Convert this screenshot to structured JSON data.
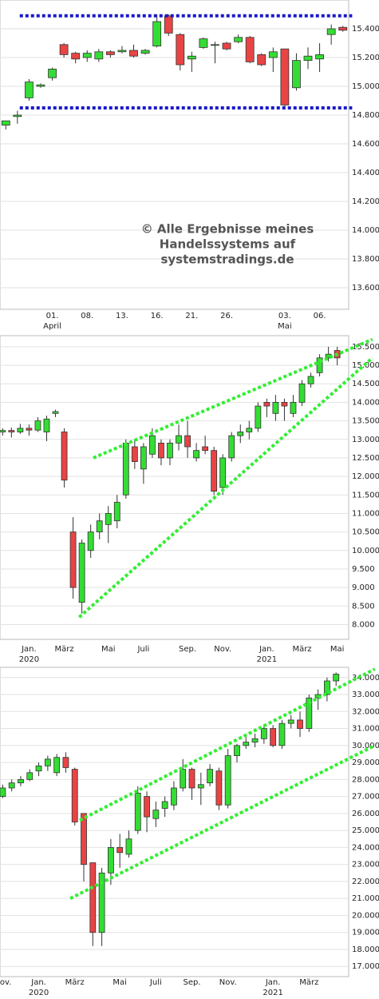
{
  "chart_data": [
    {
      "type": "candlestick",
      "categories": [
        null,
        null,
        null,
        null,
        "01.",
        null,
        null,
        "08.",
        null,
        null,
        "13.",
        null,
        null,
        "16.",
        null,
        null,
        "21.",
        null,
        null,
        "26.",
        null,
        null,
        null,
        null,
        "03.",
        null,
        null,
        "06.",
        null,
        null
      ],
      "x_sublabels": [
        null,
        null,
        null,
        null,
        "April",
        null,
        null,
        null,
        null,
        null,
        null,
        null,
        null,
        null,
        null,
        null,
        null,
        null,
        null,
        null,
        null,
        null,
        null,
        null,
        "Mai",
        null,
        null,
        null,
        null,
        null
      ],
      "open": [
        14730,
        14790,
        14920,
        15000,
        15060,
        15290,
        15230,
        15200,
        15190,
        15240,
        15240,
        15250,
        15230,
        15280,
        15490,
        15360,
        15190,
        15270,
        15290,
        15300,
        15310,
        15340,
        15220,
        15200,
        15260,
        14990,
        15180,
        15190,
        15360,
        15410
      ],
      "high": [
        14760,
        14830,
        15050,
        15020,
        15130,
        15300,
        15240,
        15250,
        15260,
        15250,
        15280,
        15290,
        15260,
        15500,
        15500,
        15370,
        15240,
        15340,
        15310,
        15310,
        15360,
        15350,
        15230,
        15270,
        15260,
        15230,
        15270,
        15300,
        15430,
        15420
      ],
      "low": [
        14700,
        14740,
        14900,
        14990,
        15040,
        15200,
        15160,
        15170,
        15170,
        15200,
        15230,
        15200,
        15220,
        15270,
        15350,
        15110,
        15100,
        15260,
        15160,
        15250,
        15300,
        15160,
        15140,
        15100,
        14850,
        14970,
        15120,
        15100,
        15290,
        15380
      ],
      "close": [
        14760,
        14800,
        15030,
        15010,
        15120,
        15220,
        15190,
        15230,
        15240,
        15220,
        15250,
        15210,
        15250,
        15450,
        15370,
        15150,
        15210,
        15330,
        15290,
        15260,
        15340,
        15170,
        15150,
        15240,
        14870,
        15180,
        15210,
        15220,
        15400,
        15390
      ],
      "up_color": "#33dd33",
      "down_color": "#e84444",
      "xlim": [
        -0.5,
        29.5
      ],
      "ylim": [
        13450,
        15600
      ],
      "yticks": [
        {
          "value": 13600,
          "label": "13.600"
        },
        {
          "value": 13800,
          "label": "13.800"
        },
        {
          "value": 14000,
          "label": "14.000"
        },
        {
          "value": 14200,
          "label": "14.200"
        },
        {
          "value": 14400,
          "label": "14.400"
        },
        {
          "value": 14600,
          "label": "14.600"
        },
        {
          "value": 14800,
          "label": "14.800"
        },
        {
          "value": 15000,
          "label": "15.000"
        },
        {
          "value": 15200,
          "label": "15.200"
        },
        {
          "value": 15400,
          "label": "15.400"
        }
      ],
      "lines": [
        {
          "color": "#1a1acc",
          "x": [
            1.2,
            29.8
          ],
          "y": [
            15490,
            15490
          ]
        },
        {
          "color": "#1a1acc",
          "x": [
            1.2,
            29.8
          ],
          "y": [
            14850,
            14850
          ]
        }
      ],
      "annotation": [
        "© Alle Ergebnisse meines",
        "Handelssystems auf",
        "systemstradings.de"
      ]
    },
    {
      "type": "candlestick",
      "categories": [
        null,
        null,
        null,
        "Jan.",
        null,
        null,
        null,
        "März",
        null,
        null,
        null,
        null,
        "Mai",
        null,
        null,
        null,
        "Juli",
        null,
        null,
        null,
        null,
        "Sep.",
        null,
        null,
        null,
        "Nov.",
        null,
        null,
        null,
        null,
        "Jan.",
        null,
        null,
        null,
        "März",
        null,
        null,
        null,
        "Mai"
      ],
      "x_sublabels": [
        null,
        null,
        null,
        "2020",
        null,
        null,
        null,
        null,
        null,
        null,
        null,
        null,
        null,
        null,
        null,
        null,
        null,
        null,
        null,
        null,
        null,
        null,
        null,
        null,
        null,
        null,
        null,
        null,
        null,
        null,
        "2021",
        null,
        null,
        null,
        null,
        null,
        null,
        null,
        null
      ],
      "open": [
        13200,
        13240,
        13200,
        13300,
        13250,
        13200,
        13700,
        13200,
        10500,
        8600,
        10000,
        10500,
        10700,
        10800,
        11500,
        12800,
        12200,
        12600,
        12900,
        12500,
        12900,
        13100,
        12500,
        12800,
        12700,
        11700,
        12500,
        13100,
        13200,
        13300,
        14000,
        13700,
        14000,
        13700,
        14000,
        14500,
        14800,
        15200,
        15400
      ],
      "high": [
        13300,
        13320,
        13420,
        13400,
        13600,
        13640,
        13800,
        13300,
        10900,
        10300,
        10700,
        11000,
        11200,
        11500,
        13000,
        13000,
        12900,
        13300,
        13000,
        13000,
        13400,
        13500,
        12900,
        13100,
        12800,
        12600,
        13200,
        13400,
        13500,
        14000,
        14100,
        14200,
        14100,
        14200,
        14600,
        14800,
        15300,
        15500,
        15500
      ],
      "low": [
        13100,
        13050,
        13150,
        13100,
        13200,
        12950,
        13600,
        11700,
        8700,
        8300,
        9800,
        10300,
        10200,
        10600,
        11400,
        12200,
        11800,
        12500,
        12300,
        12300,
        12700,
        12500,
        12400,
        12600,
        11500,
        11500,
        12400,
        12900,
        13000,
        13200,
        13600,
        13500,
        13500,
        13600,
        13900,
        14400,
        14700,
        15100,
        15000
      ],
      "close": [
        13240,
        13200,
        13300,
        13250,
        13500,
        13550,
        13750,
        11900,
        9000,
        10200,
        10500,
        10800,
        11000,
        11300,
        12900,
        12400,
        12800,
        13100,
        12500,
        12900,
        13100,
        12800,
        12700,
        12700,
        11600,
        12500,
        13100,
        13200,
        13300,
        13900,
        13900,
        14000,
        13900,
        14000,
        14500,
        14700,
        15200,
        15300,
        15200
      ],
      "up_color": "#33dd33",
      "down_color": "#e84444",
      "xlim": [
        -0.3,
        39.3
      ],
      "ylim": [
        7600,
        15800
      ],
      "yticks": [
        {
          "value": 8000,
          "label": "8.000"
        },
        {
          "value": 8500,
          "label": "8.500"
        },
        {
          "value": 9000,
          "label": "9.000"
        },
        {
          "value": 9500,
          "label": "9.500"
        },
        {
          "value": 10000,
          "label": "10.000"
        },
        {
          "value": 10500,
          "label": "10.500"
        },
        {
          "value": 11000,
          "label": "11.000"
        },
        {
          "value": 11500,
          "label": "11.500"
        },
        {
          "value": 12000,
          "label": "12.000"
        },
        {
          "value": 12500,
          "label": "12.500"
        },
        {
          "value": 13000,
          "label": "13.000"
        },
        {
          "value": 13500,
          "label": "13.500"
        },
        {
          "value": 14000,
          "label": "14.000"
        },
        {
          "value": 14500,
          "label": "14.500"
        },
        {
          "value": 15000,
          "label": "15.000"
        },
        {
          "value": 15500,
          "label": "15.500"
        }
      ],
      "lines": [
        {
          "color": "#33ee33",
          "x": [
            10.3,
            42
          ],
          "y": [
            12500,
            15700
          ]
        },
        {
          "color": "#33ee33",
          "x": [
            8.7,
            42
          ],
          "y": [
            8200,
            15200
          ]
        }
      ]
    },
    {
      "type": "candlestick",
      "categories": [
        "Nov.",
        null,
        null,
        null,
        "Jan.",
        null,
        null,
        null,
        "März",
        null,
        null,
        null,
        null,
        "Mai",
        null,
        null,
        null,
        "Juli",
        null,
        null,
        null,
        "Sep.",
        null,
        null,
        null,
        "Nov.",
        null,
        null,
        null,
        null,
        "Jan.",
        null,
        null,
        null,
        "März",
        null,
        null,
        null
      ],
      "x_sublabels": [
        null,
        null,
        null,
        null,
        "2020",
        null,
        null,
        null,
        null,
        null,
        null,
        null,
        null,
        null,
        null,
        null,
        null,
        null,
        null,
        null,
        null,
        null,
        null,
        null,
        null,
        null,
        null,
        null,
        null,
        null,
        "2021",
        null,
        null,
        null,
        null,
        null,
        null,
        null
      ],
      "open": [
        27000,
        27500,
        27800,
        28000,
        28500,
        28800,
        28400,
        29300,
        28600,
        26000,
        23100,
        19000,
        22500,
        24000,
        23600,
        25000,
        27000,
        25700,
        26300,
        26500,
        27500,
        28600,
        27500,
        27800,
        28500,
        26500,
        29400,
        30000,
        30200,
        30400,
        31000,
        30000,
        31300,
        31500,
        31000,
        32800,
        33000,
        33800
      ],
      "high": [
        27700,
        28000,
        28200,
        28600,
        29000,
        29400,
        29500,
        29600,
        28700,
        26000,
        23100,
        22800,
        24500,
        24800,
        25000,
        27600,
        27300,
        26700,
        27000,
        27900,
        29200,
        28700,
        28400,
        28900,
        28700,
        29800,
        30100,
        30500,
        30700,
        31200,
        31200,
        31500,
        31800,
        32000,
        33000,
        33300,
        34000,
        34300
      ],
      "low": [
        26900,
        27300,
        27600,
        27900,
        28200,
        28500,
        28200,
        28400,
        25300,
        22000,
        18200,
        18200,
        21800,
        22800,
        23400,
        24800,
        24900,
        25200,
        25800,
        26200,
        27300,
        26800,
        26500,
        27600,
        26200,
        26300,
        29000,
        29800,
        29900,
        30100,
        29900,
        29800,
        31000,
        30500,
        30800,
        32100,
        32600,
        33500
      ],
      "close": [
        27500,
        27800,
        28000,
        28400,
        28800,
        29200,
        29300,
        28700,
        25500,
        23000,
        19000,
        22500,
        24000,
        23700,
        24500,
        27200,
        25800,
        26200,
        26700,
        27500,
        28600,
        27500,
        27700,
        28600,
        26500,
        29400,
        30000,
        30200,
        30400,
        31000,
        30000,
        31300,
        31500,
        31000,
        32800,
        33000,
        33800,
        34200
      ],
      "up_color": "#33dd33",
      "down_color": "#e84444",
      "xlim": [
        -0.3,
        38.4
      ],
      "ylim": [
        16400,
        34600
      ],
      "yticks": [
        {
          "value": 17000,
          "label": "17.000"
        },
        {
          "value": 18000,
          "label": "18.000"
        },
        {
          "value": 19000,
          "label": "19.000"
        },
        {
          "value": 20000,
          "label": "20.000"
        },
        {
          "value": 21000,
          "label": "21.000"
        },
        {
          "value": 22000,
          "label": "22.000"
        },
        {
          "value": 23000,
          "label": "23.000"
        },
        {
          "value": 24000,
          "label": "24.000"
        },
        {
          "value": 25000,
          "label": "25.000"
        },
        {
          "value": 26000,
          "label": "26.000"
        },
        {
          "value": 27000,
          "label": "27.000"
        },
        {
          "value": 28000,
          "label": "28.000"
        },
        {
          "value": 29000,
          "label": "29.000"
        },
        {
          "value": 30000,
          "label": "30.000"
        },
        {
          "value": 31000,
          "label": "31.000"
        },
        {
          "value": 32000,
          "label": "32.000"
        },
        {
          "value": 33000,
          "label": "33.000"
        },
        {
          "value": 34000,
          "label": "34.000"
        }
      ],
      "lines": [
        {
          "color": "#33ee33",
          "x": [
            8.55,
            41.3
          ],
          "y": [
            25600,
            34500
          ]
        },
        {
          "color": "#33ee33",
          "x": [
            7.5,
            41.3
          ],
          "y": [
            21000,
            30000
          ]
        }
      ]
    }
  ]
}
